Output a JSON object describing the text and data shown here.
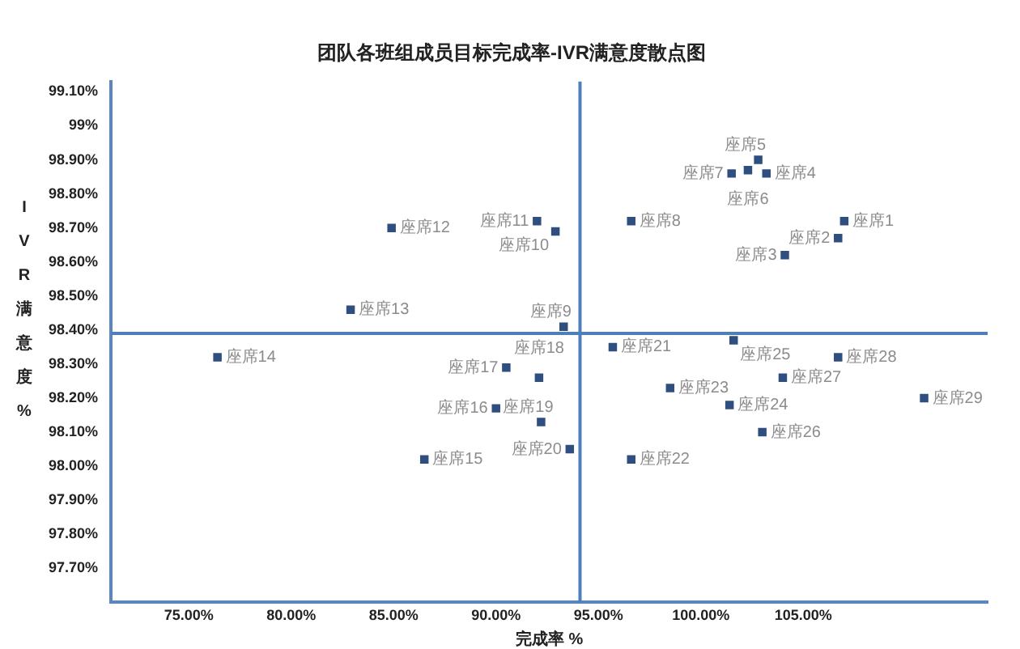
{
  "chart_data": {
    "type": "scatter",
    "title": "团队各班组成员目标完成率-IVR满意度散点图",
    "xlabel": "完成率 %",
    "ylabel": "IVR满意度%",
    "xlim": [
      71.2,
      114
    ],
    "xticks": [
      {
        "value": 75,
        "label": "75.00%"
      },
      {
        "value": 80,
        "label": "80.00%"
      },
      {
        "value": 85,
        "label": "85.00%"
      },
      {
        "value": 90,
        "label": "90.00%"
      },
      {
        "value": 95,
        "label": "95.00%"
      },
      {
        "value": 100,
        "label": "100.00%"
      },
      {
        "value": 105,
        "label": "105.00%"
      }
    ],
    "ylim": [
      97.6,
      99.13
    ],
    "yticks": [
      {
        "value": 97.7,
        "label": "97.70%"
      },
      {
        "value": 97.8,
        "label": "97.80%"
      },
      {
        "value": 97.9,
        "label": "97.90%"
      },
      {
        "value": 98.0,
        "label": "98.00%"
      },
      {
        "value": 98.1,
        "label": "98.10%"
      },
      {
        "value": 98.2,
        "label": "98.20%"
      },
      {
        "value": 98.3,
        "label": "98.30%"
      },
      {
        "value": 98.4,
        "label": "98.40%"
      },
      {
        "value": 98.5,
        "label": "98.50%"
      },
      {
        "value": 98.6,
        "label": "98.60%"
      },
      {
        "value": 98.7,
        "label": "98.70%"
      },
      {
        "value": 98.8,
        "label": "98.80%"
      },
      {
        "value": 98.9,
        "label": "98.90%"
      },
      {
        "value": 99.0,
        "label": "99%"
      },
      {
        "value": 99.1,
        "label": "99.10%"
      }
    ],
    "grid": false,
    "legend": false,
    "marker": "square",
    "series": [
      {
        "color": "#2e4f7f",
        "x": [
          107.0,
          106.7,
          104.1,
          103.2,
          102.8,
          102.3,
          101.5,
          96.6,
          93.3,
          92.9,
          92.0,
          84.9,
          82.9,
          76.4,
          86.5,
          90.0,
          90.5,
          92.1,
          92.2,
          93.6,
          95.7,
          96.6,
          98.5,
          101.4,
          101.6,
          103.0,
          104.0,
          106.7,
          110.9
        ],
        "values": [
          98.72,
          98.67,
          98.62,
          98.86,
          98.9,
          98.87,
          98.86,
          98.72,
          98.41,
          98.69,
          98.72,
          98.7,
          98.46,
          98.32,
          98.02,
          98.17,
          98.29,
          98.26,
          98.13,
          98.05,
          98.35,
          98.02,
          98.23,
          98.18,
          98.37,
          98.1,
          98.26,
          98.32,
          98.2
        ]
      }
    ],
    "ref_lines": [
      {
        "axis": "x",
        "value": 94.1,
        "color": "#4f7fba"
      },
      {
        "axis": "y",
        "value": 98.39,
        "color": "#4f7fba"
      }
    ],
    "annotations": [
      {
        "text": "座席1",
        "x": 107.0,
        "y": 98.72
      },
      {
        "text": "座席2",
        "x": 106.7,
        "y": 98.67
      },
      {
        "text": "座席3",
        "x": 104.1,
        "y": 98.62
      },
      {
        "text": "座席4",
        "x": 103.2,
        "y": 98.86
      },
      {
        "text": "座席5",
        "x": 102.8,
        "y": 98.9
      },
      {
        "text": "座席6",
        "x": 102.3,
        "y": 98.87
      },
      {
        "text": "座席7",
        "x": 101.5,
        "y": 98.86
      },
      {
        "text": "座席8",
        "x": 96.6,
        "y": 98.72
      },
      {
        "text": "座席9",
        "x": 93.3,
        "y": 98.41
      },
      {
        "text": "座席10",
        "x": 92.9,
        "y": 98.69
      },
      {
        "text": "座席11",
        "x": 92.0,
        "y": 98.72
      },
      {
        "text": "座席12",
        "x": 84.9,
        "y": 98.7
      },
      {
        "text": "座席13",
        "x": 82.9,
        "y": 98.46
      },
      {
        "text": "座席14",
        "x": 76.4,
        "y": 98.32
      },
      {
        "text": "座席15",
        "x": 86.5,
        "y": 98.02
      },
      {
        "text": "座席16",
        "x": 90.0,
        "y": 98.17
      },
      {
        "text": "座席17",
        "x": 90.5,
        "y": 98.29
      },
      {
        "text": "座席18",
        "x": 92.1,
        "y": 98.26
      },
      {
        "text": "座席19",
        "x": 92.2,
        "y": 98.13
      },
      {
        "text": "座席20",
        "x": 93.6,
        "y": 98.05
      },
      {
        "text": "座席21",
        "x": 95.7,
        "y": 98.35
      },
      {
        "text": "座席22",
        "x": 96.6,
        "y": 98.02
      },
      {
        "text": "座席23",
        "x": 98.5,
        "y": 98.23
      },
      {
        "text": "座席24",
        "x": 101.4,
        "y": 98.18
      },
      {
        "text": "座席25",
        "x": 101.6,
        "y": 98.37
      },
      {
        "text": "座席26",
        "x": 103.0,
        "y": 98.1
      },
      {
        "text": "座席27",
        "x": 104.0,
        "y": 98.26
      },
      {
        "text": "座席28",
        "x": 106.7,
        "y": 98.32
      },
      {
        "text": "座席29",
        "x": 110.9,
        "y": 98.2
      }
    ]
  }
}
